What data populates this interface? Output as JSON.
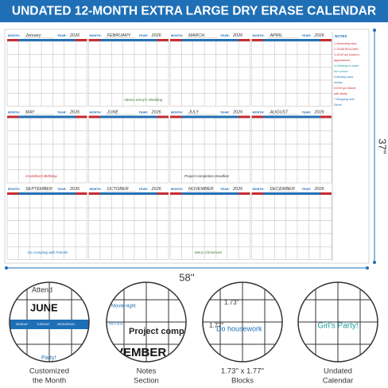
{
  "header": {
    "title": "UNDATED 12-MONTH EXTRA LARGE DRY ERASE CALENDAR"
  },
  "calendar": {
    "month_label": "MONTH:",
    "year_label": "YEAR:",
    "year": "2026",
    "months": [
      "January",
      "FEBRUARY",
      "MARCH",
      "APRIL",
      "MAY",
      "JUNE",
      "JULY",
      "AUGUST",
      "SEPTEMBER",
      "OCTOBER",
      "NOVEMBER",
      "DECEMBER"
    ],
    "notes_title": "NOTES",
    "notes_lines": [
      "1.Swimming class",
      "2.TEAM BUILDING",
      "3.10:00 am Doctor's",
      "appointment",
      "4.Climbing to watch",
      "the sunrise",
      "5.Monthly work",
      "review",
      "6.8:00 pm Dinner",
      "with family",
      "7.Shopping with",
      "Sarah"
    ],
    "annotations": [
      "Attend Jenny's Wedding",
      "Grandma's Birthday",
      "Project completion Deadline",
      "Go Camping with Friends",
      "Merry Christmas!"
    ]
  },
  "dimensions": {
    "width": "58''",
    "height": "37''"
  },
  "features": [
    {
      "texts": [
        "Attend",
        "JUNE",
        "MONDAY",
        "TUESDAY",
        "WEDNESDAY",
        "Party!"
      ],
      "caption": [
        "Customized",
        "the Month"
      ]
    },
    {
      "texts": [
        "Movie night",
        "NOTES:",
        "Project comp",
        "VEMBER"
      ],
      "caption": [
        "Notes",
        "Section"
      ]
    },
    {
      "texts": [
        "1.73''",
        "1.77''",
        "Do housework"
      ],
      "caption": [
        "1.73'' x 1.77''",
        "Blocks"
      ]
    },
    {
      "texts": [
        "Girl's Party!"
      ],
      "caption": [
        "Undated",
        "Calendar"
      ]
    }
  ]
}
